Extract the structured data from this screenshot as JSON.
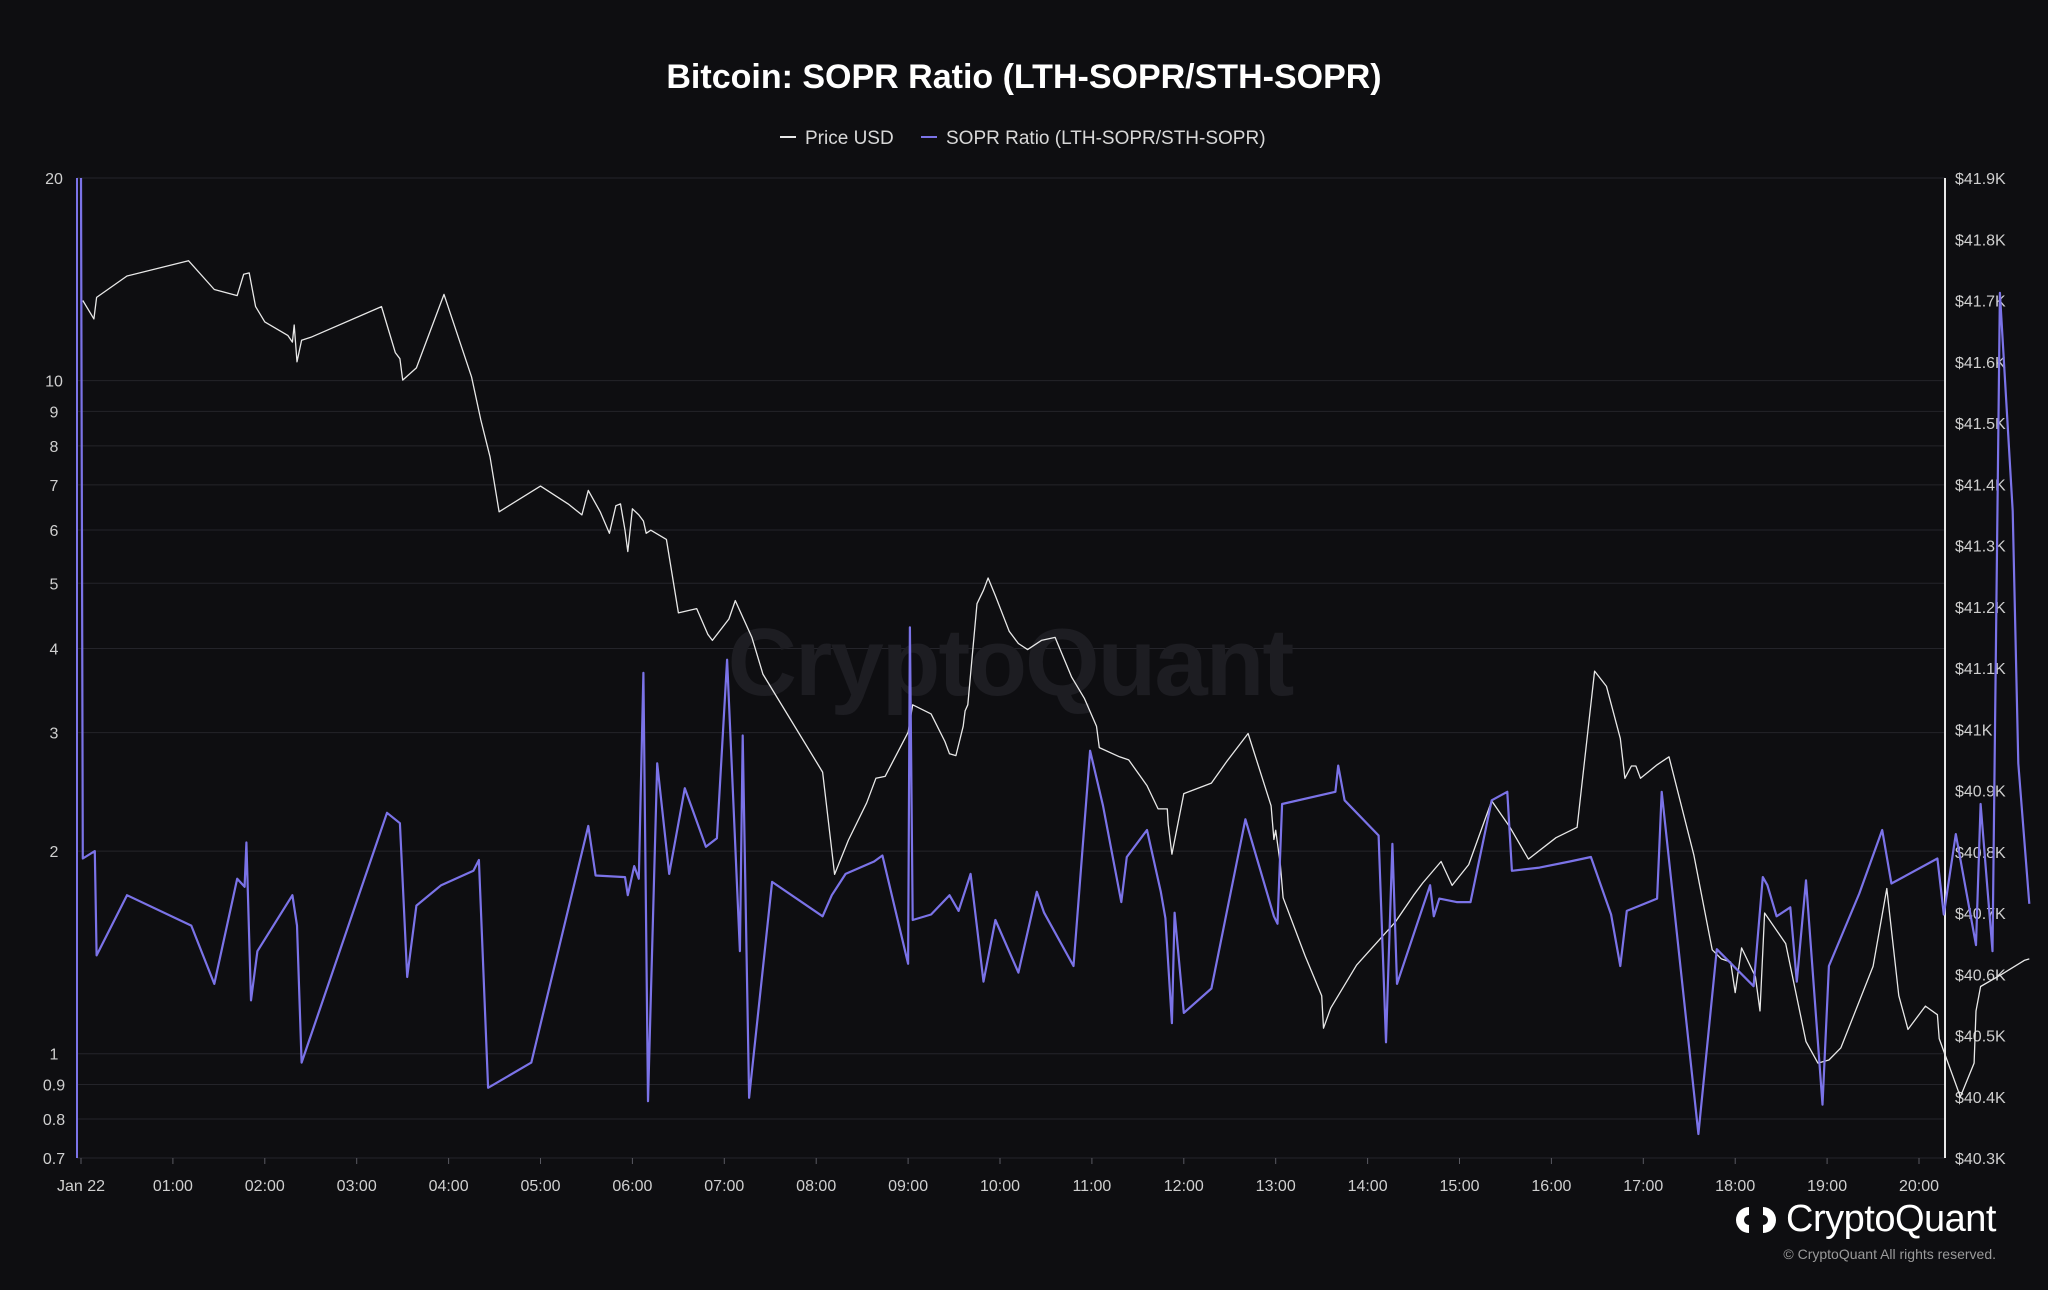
{
  "title": "Bitcoin: SOPR Ratio (LTH-SOPR/STH-SOPR)",
  "watermark": "CryptoQuant",
  "brand": {
    "name": "CryptoQuant",
    "copyright": "© CryptoQuant All rights reserved."
  },
  "chart_data": {
    "type": "line",
    "title": "Bitcoin: SOPR Ratio (LTH-SOPR/STH-SOPR)",
    "legend_position": "top-center",
    "grid": true,
    "x_ticks": [
      "Jan 22",
      "01:00",
      "02:00",
      "03:00",
      "04:00",
      "05:00",
      "06:00",
      "07:00",
      "08:00",
      "09:00",
      "10:00",
      "11:00",
      "12:00",
      "13:00",
      "14:00",
      "15:00",
      "16:00",
      "17:00",
      "18:00",
      "19:00",
      "20:00"
    ],
    "x_range_hours": [
      0,
      20.3
    ],
    "y_left": {
      "scale": "log",
      "range": [
        0.7,
        20
      ],
      "ticks": [
        20,
        10,
        9,
        8,
        7,
        6,
        5,
        4,
        3,
        2,
        1,
        0.9,
        0.8,
        0.7
      ],
      "tick_labels": [
        "20",
        "10",
        "9",
        "8",
        "7",
        "6",
        "5",
        "4",
        "3",
        "2",
        "1",
        "0.9",
        "0.8",
        "0.7"
      ]
    },
    "y_right": {
      "scale": "linear",
      "range": [
        40300,
        41900
      ],
      "ticks": [
        41900,
        41800,
        41700,
        41600,
        41500,
        41400,
        41300,
        41200,
        41100,
        41000,
        40900,
        40800,
        40700,
        40600,
        40500,
        40400,
        40300
      ],
      "tick_labels": [
        "$41.9K",
        "$41.8K",
        "$41.7K",
        "$41.6K",
        "$41.5K",
        "$41.4K",
        "$41.3K",
        "$41.2K",
        "$41.1K",
        "$41K",
        "$40.9K",
        "$40.8K",
        "$40.7K",
        "$40.6K",
        "$40.5K",
        "$40.4K",
        "$40.3K"
      ]
    },
    "series": [
      {
        "name": "Price USD",
        "axis": "right",
        "color": "#e8e8e8",
        "points": [
          [
            0.02,
            41700
          ],
          [
            0.14,
            41670
          ],
          [
            0.17,
            41705
          ],
          [
            0.5,
            41740
          ],
          [
            1.17,
            41765
          ],
          [
            1.45,
            41718
          ],
          [
            1.7,
            41708
          ],
          [
            1.77,
            41743
          ],
          [
            1.83,
            41745
          ],
          [
            1.9,
            41690
          ],
          [
            2.0,
            41665
          ],
          [
            2.25,
            41643
          ],
          [
            2.3,
            41632
          ],
          [
            2.32,
            41660
          ],
          [
            2.35,
            41600
          ],
          [
            2.4,
            41635
          ],
          [
            2.5,
            41640
          ],
          [
            3.27,
            41690
          ],
          [
            3.42,
            41615
          ],
          [
            3.47,
            41605
          ],
          [
            3.5,
            41570
          ],
          [
            3.65,
            41590
          ],
          [
            3.95,
            41710
          ],
          [
            4.05,
            41665
          ],
          [
            4.25,
            41575
          ],
          [
            4.35,
            41505
          ],
          [
            4.45,
            41445
          ],
          [
            4.55,
            41355
          ],
          [
            5.0,
            41397
          ],
          [
            5.3,
            41368
          ],
          [
            5.45,
            41350
          ],
          [
            5.52,
            41390
          ],
          [
            5.65,
            41355
          ],
          [
            5.75,
            41320
          ],
          [
            5.82,
            41365
          ],
          [
            5.87,
            41368
          ],
          [
            5.92,
            41325
          ],
          [
            5.95,
            41290
          ],
          [
            6.0,
            41360
          ],
          [
            6.07,
            41350
          ],
          [
            6.12,
            41340
          ],
          [
            6.15,
            41320
          ],
          [
            6.2,
            41325
          ],
          [
            6.37,
            41310
          ],
          [
            6.5,
            41190
          ],
          [
            6.7,
            41197
          ],
          [
            6.82,
            41155
          ],
          [
            6.87,
            41145
          ],
          [
            7.05,
            41180
          ],
          [
            7.12,
            41210
          ],
          [
            7.3,
            41150
          ],
          [
            7.42,
            41090
          ],
          [
            8.07,
            40930
          ],
          [
            8.2,
            40763
          ],
          [
            8.35,
            40819
          ],
          [
            8.55,
            40880
          ],
          [
            8.65,
            40920
          ],
          [
            8.75,
            40923
          ],
          [
            9.0,
            40995
          ],
          [
            9.05,
            41040
          ],
          [
            9.25,
            41025
          ],
          [
            9.4,
            40980
          ],
          [
            9.45,
            40960
          ],
          [
            9.52,
            40957
          ],
          [
            9.6,
            41005
          ],
          [
            9.62,
            41030
          ],
          [
            9.65,
            41040
          ],
          [
            9.75,
            41205
          ],
          [
            9.82,
            41227
          ],
          [
            9.87,
            41247
          ],
          [
            9.95,
            41218
          ],
          [
            10.1,
            41160
          ],
          [
            10.2,
            41140
          ],
          [
            10.3,
            41130
          ],
          [
            10.45,
            41145
          ],
          [
            10.6,
            41150
          ],
          [
            10.78,
            41085
          ],
          [
            10.92,
            41050
          ],
          [
            11.05,
            41005
          ],
          [
            11.08,
            40970
          ],
          [
            11.3,
            40955
          ],
          [
            11.4,
            40950
          ],
          [
            11.6,
            40908
          ],
          [
            11.72,
            40870
          ],
          [
            11.82,
            40870
          ],
          [
            11.83,
            40845
          ],
          [
            11.87,
            40796
          ],
          [
            12.0,
            40895
          ],
          [
            12.3,
            40912
          ],
          [
            12.47,
            40948
          ],
          [
            12.7,
            40993
          ],
          [
            12.95,
            40875
          ],
          [
            12.98,
            40820
          ],
          [
            13.0,
            40835
          ],
          [
            13.05,
            40780
          ],
          [
            13.08,
            40725
          ],
          [
            13.32,
            40630
          ],
          [
            13.5,
            40565
          ],
          [
            13.52,
            40512
          ],
          [
            13.6,
            40545
          ],
          [
            13.88,
            40615
          ],
          [
            14.3,
            40685
          ],
          [
            14.5,
            40729
          ],
          [
            14.6,
            40749
          ],
          [
            14.8,
            40784
          ],
          [
            14.92,
            40745
          ],
          [
            15.1,
            40779
          ],
          [
            15.35,
            40883
          ],
          [
            15.55,
            40840
          ],
          [
            15.75,
            40788
          ],
          [
            16.05,
            40823
          ],
          [
            16.28,
            40840
          ],
          [
            16.47,
            41095
          ],
          [
            16.6,
            41070
          ],
          [
            16.75,
            40985
          ],
          [
            16.8,
            40920
          ],
          [
            16.87,
            40940
          ],
          [
            16.92,
            40940
          ],
          [
            16.97,
            40920
          ],
          [
            17.15,
            40942
          ],
          [
            17.28,
            40955
          ],
          [
            17.55,
            40795
          ],
          [
            17.75,
            40640
          ],
          [
            17.85,
            40625
          ],
          [
            17.95,
            40620
          ],
          [
            18.0,
            40570
          ],
          [
            18.07,
            40643
          ],
          [
            18.22,
            40596
          ],
          [
            18.27,
            40540
          ],
          [
            18.32,
            40700
          ],
          [
            18.55,
            40650
          ],
          [
            18.77,
            40490
          ],
          [
            18.9,
            40455
          ],
          [
            19.02,
            40460
          ],
          [
            19.15,
            40480
          ],
          [
            19.5,
            40613
          ],
          [
            19.65,
            40740
          ],
          [
            19.78,
            40565
          ],
          [
            19.88,
            40510
          ],
          [
            20.07,
            40548
          ],
          [
            20.2,
            40534
          ],
          [
            20.22,
            40495
          ],
          [
            20.45,
            40400
          ],
          [
            20.6,
            40455
          ],
          [
            20.62,
            40540
          ],
          [
            20.67,
            40580
          ],
          [
            20.9,
            40600
          ],
          [
            21.15,
            40623
          ],
          [
            21.2,
            40625
          ]
        ]
      },
      {
        "name": "SOPR Ratio (LTH-SOPR/STH-SOPR)",
        "axis": "left",
        "color": "#7b73e8",
        "points": [
          [
            0,
            20
          ],
          [
            0.02,
            1.95
          ],
          [
            0.15,
            2
          ],
          [
            0.17,
            1.4
          ],
          [
            0.5,
            1.72
          ],
          [
            1.2,
            1.55
          ],
          [
            1.45,
            1.27
          ],
          [
            1.7,
            1.82
          ],
          [
            1.78,
            1.77
          ],
          [
            1.8,
            2.06
          ],
          [
            1.85,
            1.2
          ],
          [
            1.92,
            1.42
          ],
          [
            2.3,
            1.72
          ],
          [
            2.35,
            1.55
          ],
          [
            2.4,
            0.97
          ],
          [
            3.33,
            2.28
          ],
          [
            3.47,
            2.2
          ],
          [
            3.55,
            1.3
          ],
          [
            3.65,
            1.66
          ],
          [
            3.92,
            1.78
          ],
          [
            4.27,
            1.87
          ],
          [
            4.33,
            1.94
          ],
          [
            4.43,
            0.89
          ],
          [
            4.9,
            0.97
          ],
          [
            5.52,
            2.18
          ],
          [
            5.6,
            1.84
          ],
          [
            5.92,
            1.83
          ],
          [
            5.95,
            1.72
          ],
          [
            6.02,
            1.9
          ],
          [
            6.07,
            1.82
          ],
          [
            6.12,
            3.68
          ],
          [
            6.17,
            0.85
          ],
          [
            6.27,
            2.7
          ],
          [
            6.4,
            1.85
          ],
          [
            6.57,
            2.48
          ],
          [
            6.8,
            2.03
          ],
          [
            6.92,
            2.09
          ],
          [
            7.03,
            3.85
          ],
          [
            7.17,
            1.42
          ],
          [
            7.2,
            2.97
          ],
          [
            7.27,
            0.86
          ],
          [
            7.52,
            1.8
          ],
          [
            8.07,
            1.6
          ],
          [
            8.17,
            1.72
          ],
          [
            8.32,
            1.85
          ],
          [
            8.63,
            1.93
          ],
          [
            8.72,
            1.97
          ],
          [
            9.0,
            1.36
          ],
          [
            9.02,
            4.3
          ],
          [
            9.05,
            1.58
          ],
          [
            9.25,
            1.61
          ],
          [
            9.45,
            1.72
          ],
          [
            9.55,
            1.63
          ],
          [
            9.68,
            1.85
          ],
          [
            9.82,
            1.28
          ],
          [
            9.95,
            1.58
          ],
          [
            10.2,
            1.32
          ],
          [
            10.4,
            1.74
          ],
          [
            10.48,
            1.62
          ],
          [
            10.8,
            1.35
          ],
          [
            10.98,
            2.82
          ],
          [
            11.12,
            2.34
          ],
          [
            11.32,
            1.68
          ],
          [
            11.38,
            1.96
          ],
          [
            11.6,
            2.15
          ],
          [
            11.75,
            1.74
          ],
          [
            11.8,
            1.59
          ],
          [
            11.87,
            1.11
          ],
          [
            11.9,
            1.62
          ],
          [
            12.0,
            1.15
          ],
          [
            12.3,
            1.25
          ],
          [
            12.67,
            2.23
          ],
          [
            12.98,
            1.6
          ],
          [
            13.02,
            1.56
          ],
          [
            13.07,
            2.35
          ],
          [
            13.65,
            2.45
          ],
          [
            13.68,
            2.68
          ],
          [
            13.75,
            2.38
          ],
          [
            14.12,
            2.11
          ],
          [
            14.2,
            1.04
          ],
          [
            14.27,
            2.05
          ],
          [
            14.32,
            1.27
          ],
          [
            14.68,
            1.78
          ],
          [
            14.72,
            1.6
          ],
          [
            14.78,
            1.7
          ],
          [
            14.97,
            1.68
          ],
          [
            15.12,
            1.68
          ],
          [
            15.35,
            2.38
          ],
          [
            15.52,
            2.45
          ],
          [
            15.57,
            1.87
          ],
          [
            15.87,
            1.89
          ],
          [
            16.2,
            1.93
          ],
          [
            16.43,
            1.96
          ],
          [
            16.65,
            1.61
          ],
          [
            16.75,
            1.35
          ],
          [
            16.82,
            1.63
          ],
          [
            17.15,
            1.7
          ],
          [
            17.2,
            2.45
          ],
          [
            17.6,
            0.76
          ],
          [
            17.8,
            1.43
          ],
          [
            18.2,
            1.26
          ],
          [
            18.3,
            1.83
          ],
          [
            18.35,
            1.78
          ],
          [
            18.45,
            1.6
          ],
          [
            18.6,
            1.65
          ],
          [
            18.67,
            1.28
          ],
          [
            18.77,
            1.81
          ],
          [
            18.95,
            0.84
          ],
          [
            19.02,
            1.35
          ],
          [
            19.35,
            1.73
          ],
          [
            19.6,
            2.15
          ],
          [
            19.7,
            1.79
          ],
          [
            20.2,
            1.95
          ],
          [
            20.27,
            1.61
          ],
          [
            20.4,
            2.12
          ],
          [
            20.62,
            1.45
          ],
          [
            20.67,
            2.35
          ],
          [
            20.8,
            1.42
          ],
          [
            20.88,
            13.5
          ],
          [
            21.02,
            6.4
          ],
          [
            21.08,
            2.7
          ],
          [
            21.2,
            1.67
          ]
        ]
      }
    ]
  }
}
